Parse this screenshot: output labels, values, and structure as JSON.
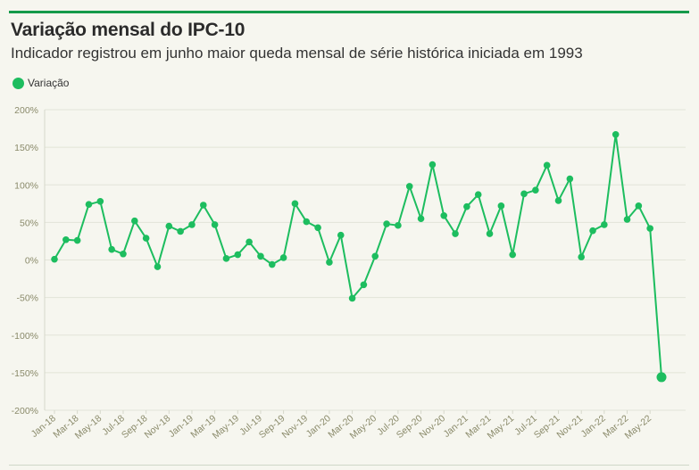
{
  "header": {
    "title": "Variação mensal do IPC-10",
    "subtitle": "Indicador registrou em junho maior queda mensal de série histórica iniciada em 1993"
  },
  "colors": {
    "accent": "#1dbd5f",
    "rule": "#159a4a",
    "grid": "#e2e4d8",
    "tick_text": "#8a8a6a"
  },
  "chart_data": {
    "type": "line",
    "legend": {
      "position": "top-left",
      "entries": [
        "Variação"
      ]
    },
    "ylim": [
      -200,
      200
    ],
    "yticks": [
      200,
      150,
      100,
      50,
      0,
      -50,
      -100,
      -150,
      -200
    ],
    "ytick_labels": [
      "200%",
      "150%",
      "100%",
      "50%",
      "0%",
      "-50%",
      "-100%",
      "-150%",
      "-200%"
    ],
    "x": [
      "Jan-18",
      "Feb-18",
      "Mar-18",
      "Apr-18",
      "May-18",
      "Jun-18",
      "Jul-18",
      "Aug-18",
      "Sep-18",
      "Oct-18",
      "Nov-18",
      "Dec-18",
      "Jan-19",
      "Feb-19",
      "Mar-19",
      "Apr-19",
      "May-19",
      "Jun-19",
      "Jul-19",
      "Aug-19",
      "Sep-19",
      "Oct-19",
      "Nov-19",
      "Dec-19",
      "Jan-20",
      "Feb-20",
      "Mar-20",
      "Apr-20",
      "May-20",
      "Jun-20",
      "Jul-20",
      "Aug-20",
      "Sep-20",
      "Oct-20",
      "Nov-20",
      "Dec-20",
      "Jan-21",
      "Feb-21",
      "Mar-21",
      "Apr-21",
      "May-21",
      "Jun-21",
      "Jul-21",
      "Aug-21",
      "Sep-21",
      "Oct-21",
      "Nov-21",
      "Dec-21",
      "Jan-22",
      "Feb-22",
      "Mar-22",
      "Apr-22",
      "May-22",
      "Jun-22"
    ],
    "xtick_labels": [
      "Jan-18",
      "Mar-18",
      "May-18",
      "Jul-18",
      "Sep-18",
      "Nov-18",
      "Jan-19",
      "Mar-19",
      "May-19",
      "Jul-19",
      "Sep-19",
      "Nov-19",
      "Jan-20",
      "Mar-20",
      "May-20",
      "Jul-20",
      "Sep-20",
      "Nov-20",
      "Jan-21",
      "Mar-21",
      "May-21",
      "Jul-21",
      "Sep-21",
      "Nov-21",
      "Jan-22",
      "Mar-22",
      "May-22"
    ],
    "grid": true,
    "series": [
      {
        "name": "Variação",
        "values": [
          1,
          27,
          26,
          74,
          78,
          14,
          8,
          52,
          29,
          -9,
          45,
          38,
          47,
          73,
          47,
          2,
          7,
          24,
          5,
          -6,
          3,
          75,
          51,
          43,
          -3,
          33,
          -51,
          -33,
          5,
          48,
          46,
          98,
          55,
          127,
          59,
          35,
          71,
          87,
          35,
          72,
          7,
          88,
          93,
          126,
          79,
          108,
          4,
          39,
          47,
          167,
          54,
          72,
          42,
          -156
        ]
      }
    ]
  }
}
